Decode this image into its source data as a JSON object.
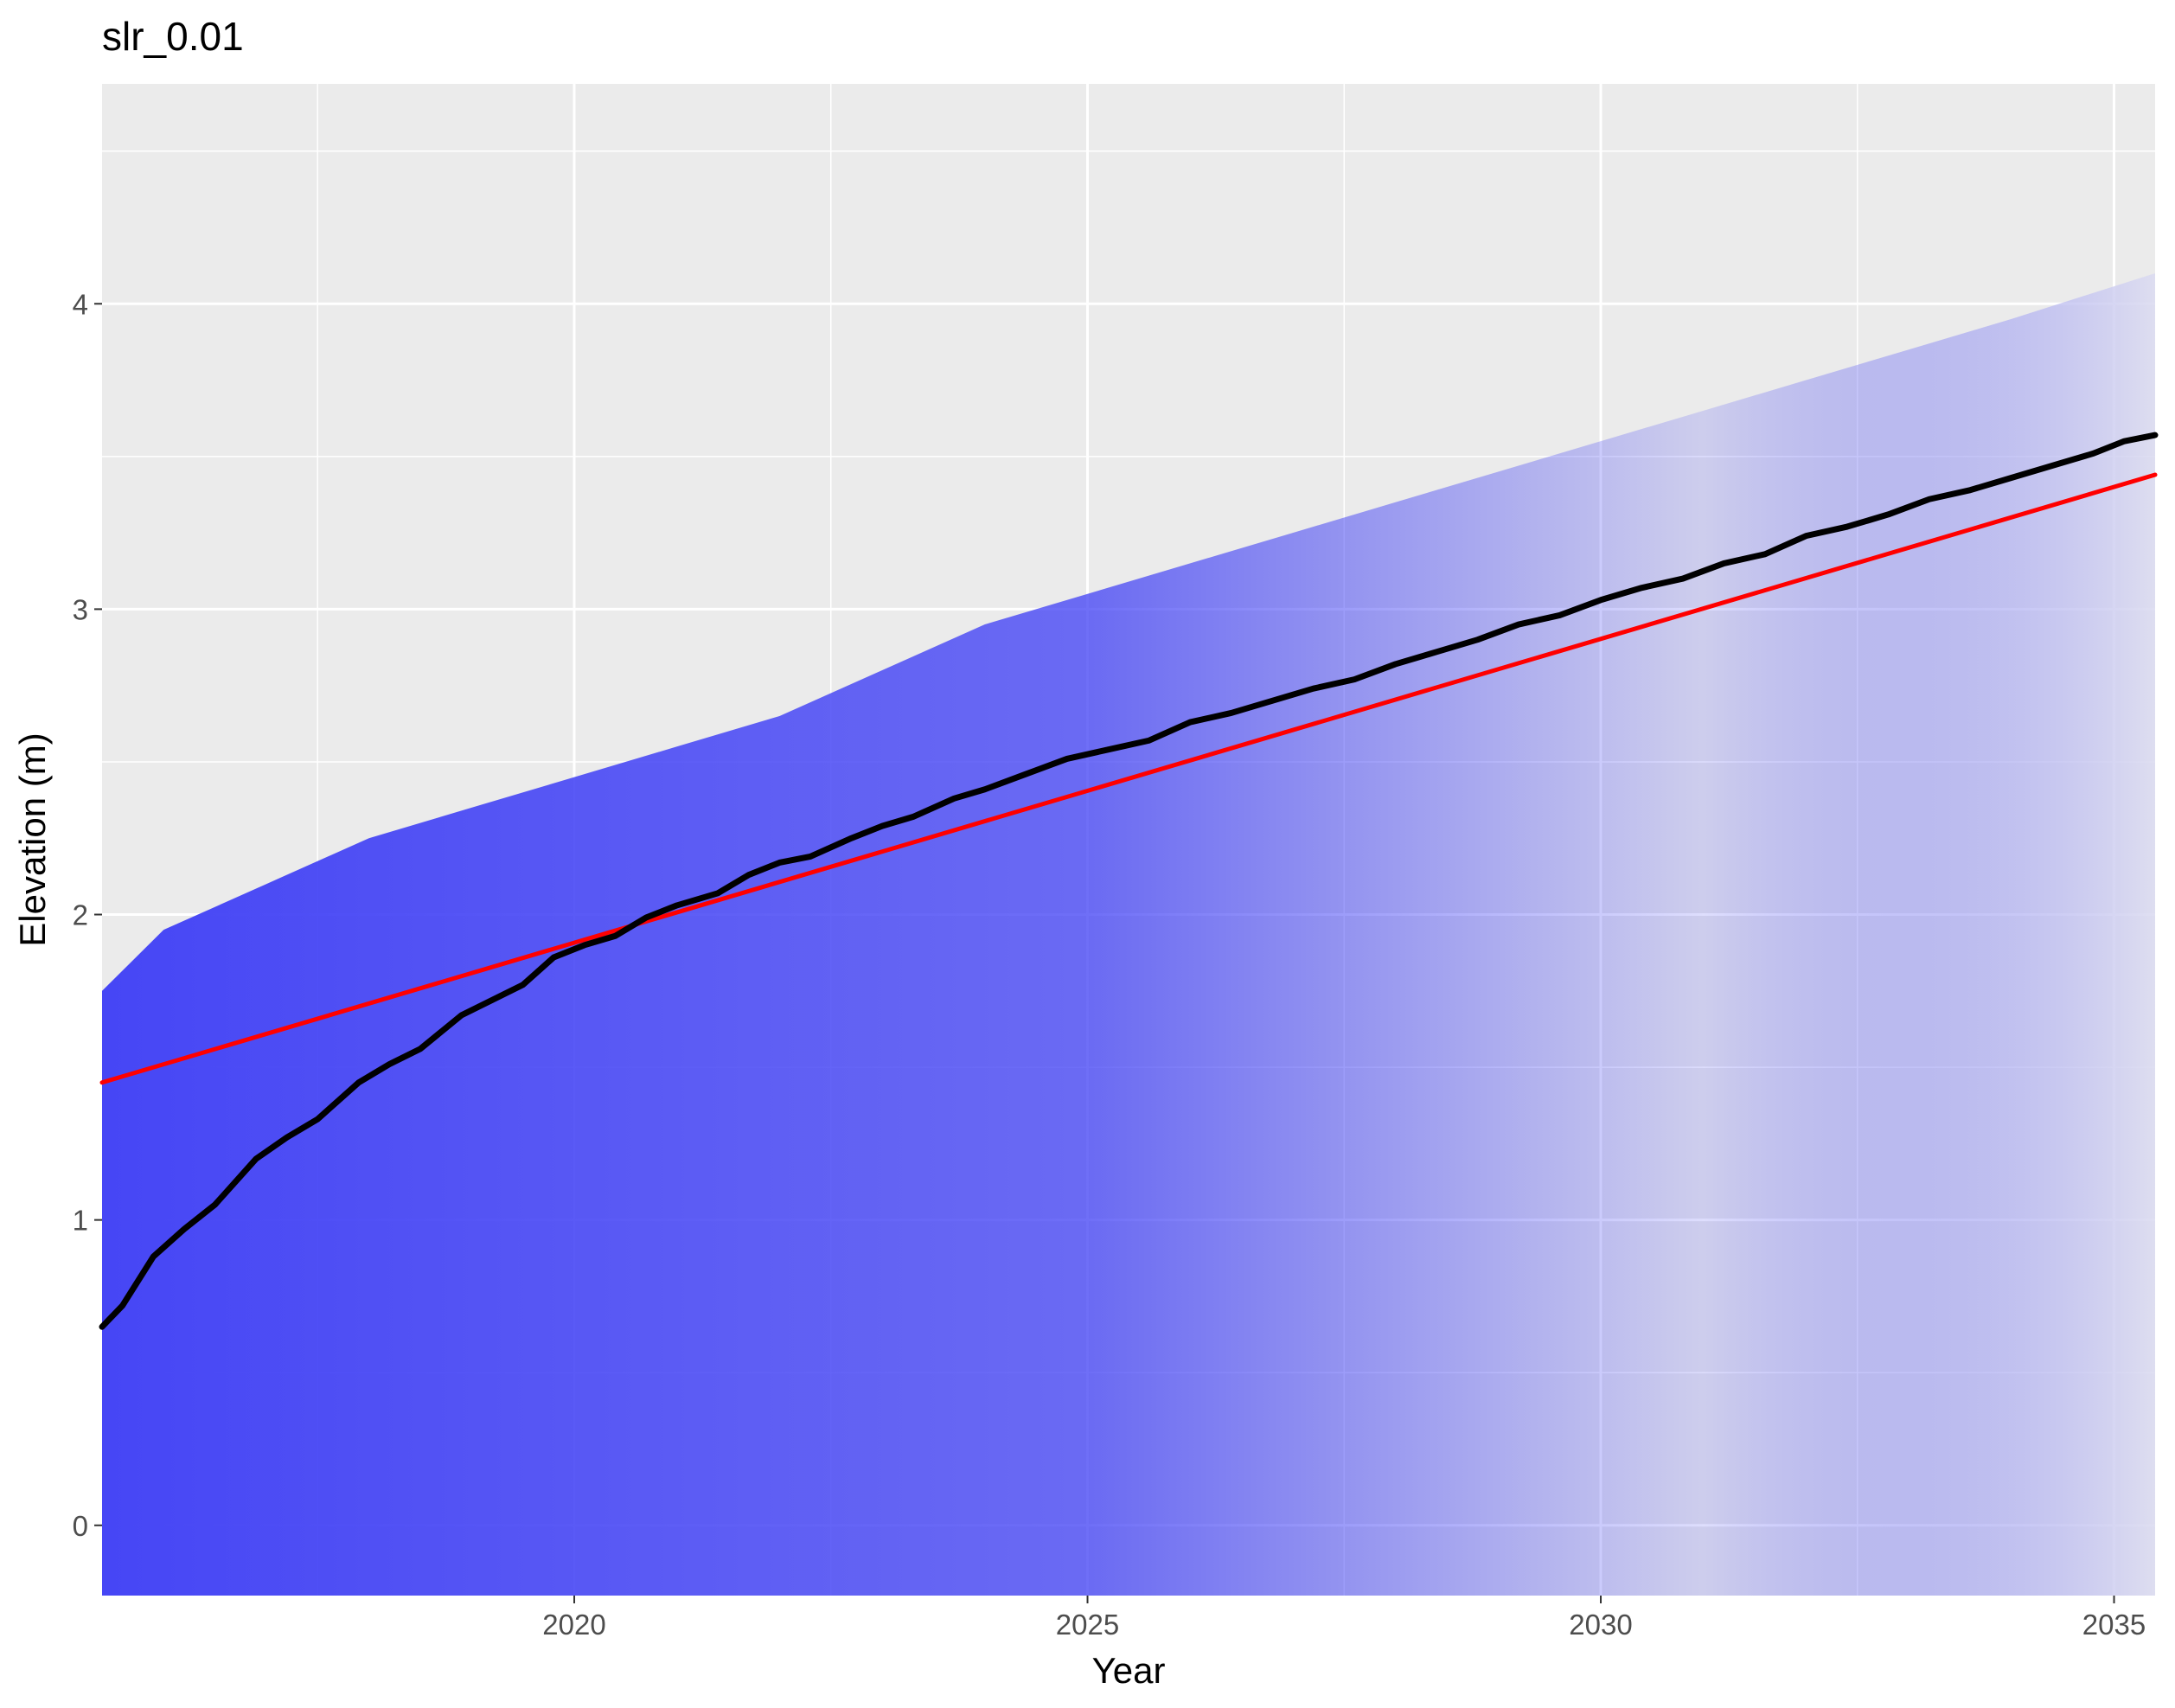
{
  "chart_data": {
    "type": "line",
    "title": "slr_0.01",
    "xlabel": "Year",
    "ylabel": "Elevation (m)",
    "xlim": [
      2015.4,
      2035.4
    ],
    "ylim": [
      -0.23,
      4.72
    ],
    "x_ticks": [
      2020,
      2025,
      2030,
      2035
    ],
    "y_ticks": [
      0,
      1,
      2,
      3,
      4
    ],
    "grid": true,
    "legend": "none",
    "colors": {
      "panel": "#ebebeb",
      "grid": "#ffffff",
      "band": "#4646f5",
      "band_faded": "#dcdcf0",
      "trend": "#ff0000",
      "median": "#000000"
    },
    "band": {
      "description_values": "upper envelope of simulated elevations (m)",
      "x": [
        2015.4,
        2016,
        2017,
        2018,
        2019,
        2020,
        2021,
        2022,
        2023,
        2024,
        2025,
        2026,
        2027,
        2028,
        2029,
        2030,
        2031,
        2032,
        2033,
        2034,
        2035.4
      ],
      "upper": [
        1.75,
        1.95,
        2.1,
        2.25,
        2.35,
        2.45,
        2.55,
        2.65,
        2.8,
        2.95,
        3.05,
        3.15,
        3.25,
        3.35,
        3.45,
        3.55,
        3.65,
        3.75,
        3.85,
        3.95,
        4.1
      ],
      "lower": [
        -0.23,
        -0.23,
        -0.23,
        -0.23,
        -0.23,
        -0.23,
        -0.23,
        -0.23,
        -0.23,
        -0.23,
        -0.23,
        -0.23,
        -0.23,
        -0.23,
        -0.23,
        -0.23,
        -0.23,
        -0.23,
        -0.23,
        -0.23,
        -0.23
      ],
      "fade_start": 2025,
      "fade_end": 2031
    },
    "series": [
      {
        "values_x": [
          2015.4,
          2035.4
        ],
        "values_y": [
          1.45,
          3.44
        ]
      },
      {
        "values_x": [
          2015.4,
          2015.6,
          2015.9,
          2016.2,
          2016.5,
          2016.9,
          2017.2,
          2017.5,
          2017.9,
          2018.2,
          2018.5,
          2018.9,
          2019.2,
          2019.5,
          2019.8,
          2020.1,
          2020.4,
          2020.7,
          2021.0,
          2021.4,
          2021.7,
          2022.0,
          2022.3,
          2022.7,
          2023.0,
          2023.3,
          2023.7,
          2024.0,
          2024.4,
          2024.8,
          2025.2,
          2025.6,
          2026.0,
          2026.4,
          2026.8,
          2027.2,
          2027.6,
          2028.0,
          2028.4,
          2028.8,
          2029.2,
          2029.6,
          2030.0,
          2030.4,
          2030.8,
          2031.2,
          2031.6,
          2032.0,
          2032.4,
          2032.8,
          2033.2,
          2033.6,
          2034.0,
          2034.4,
          2034.8,
          2035.1,
          2035.4
        ],
        "values_y": [
          0.65,
          0.72,
          0.88,
          0.97,
          1.05,
          1.2,
          1.27,
          1.33,
          1.45,
          1.51,
          1.56,
          1.67,
          1.72,
          1.77,
          1.86,
          1.9,
          1.93,
          1.99,
          2.03,
          2.07,
          2.13,
          2.17,
          2.19,
          2.25,
          2.29,
          2.32,
          2.38,
          2.41,
          2.46,
          2.51,
          2.54,
          2.57,
          2.63,
          2.66,
          2.7,
          2.74,
          2.77,
          2.82,
          2.86,
          2.9,
          2.95,
          2.98,
          3.03,
          3.07,
          3.1,
          3.15,
          3.18,
          3.24,
          3.27,
          3.31,
          3.36,
          3.39,
          3.43,
          3.47,
          3.51,
          3.55,
          3.57
        ]
      }
    ]
  }
}
